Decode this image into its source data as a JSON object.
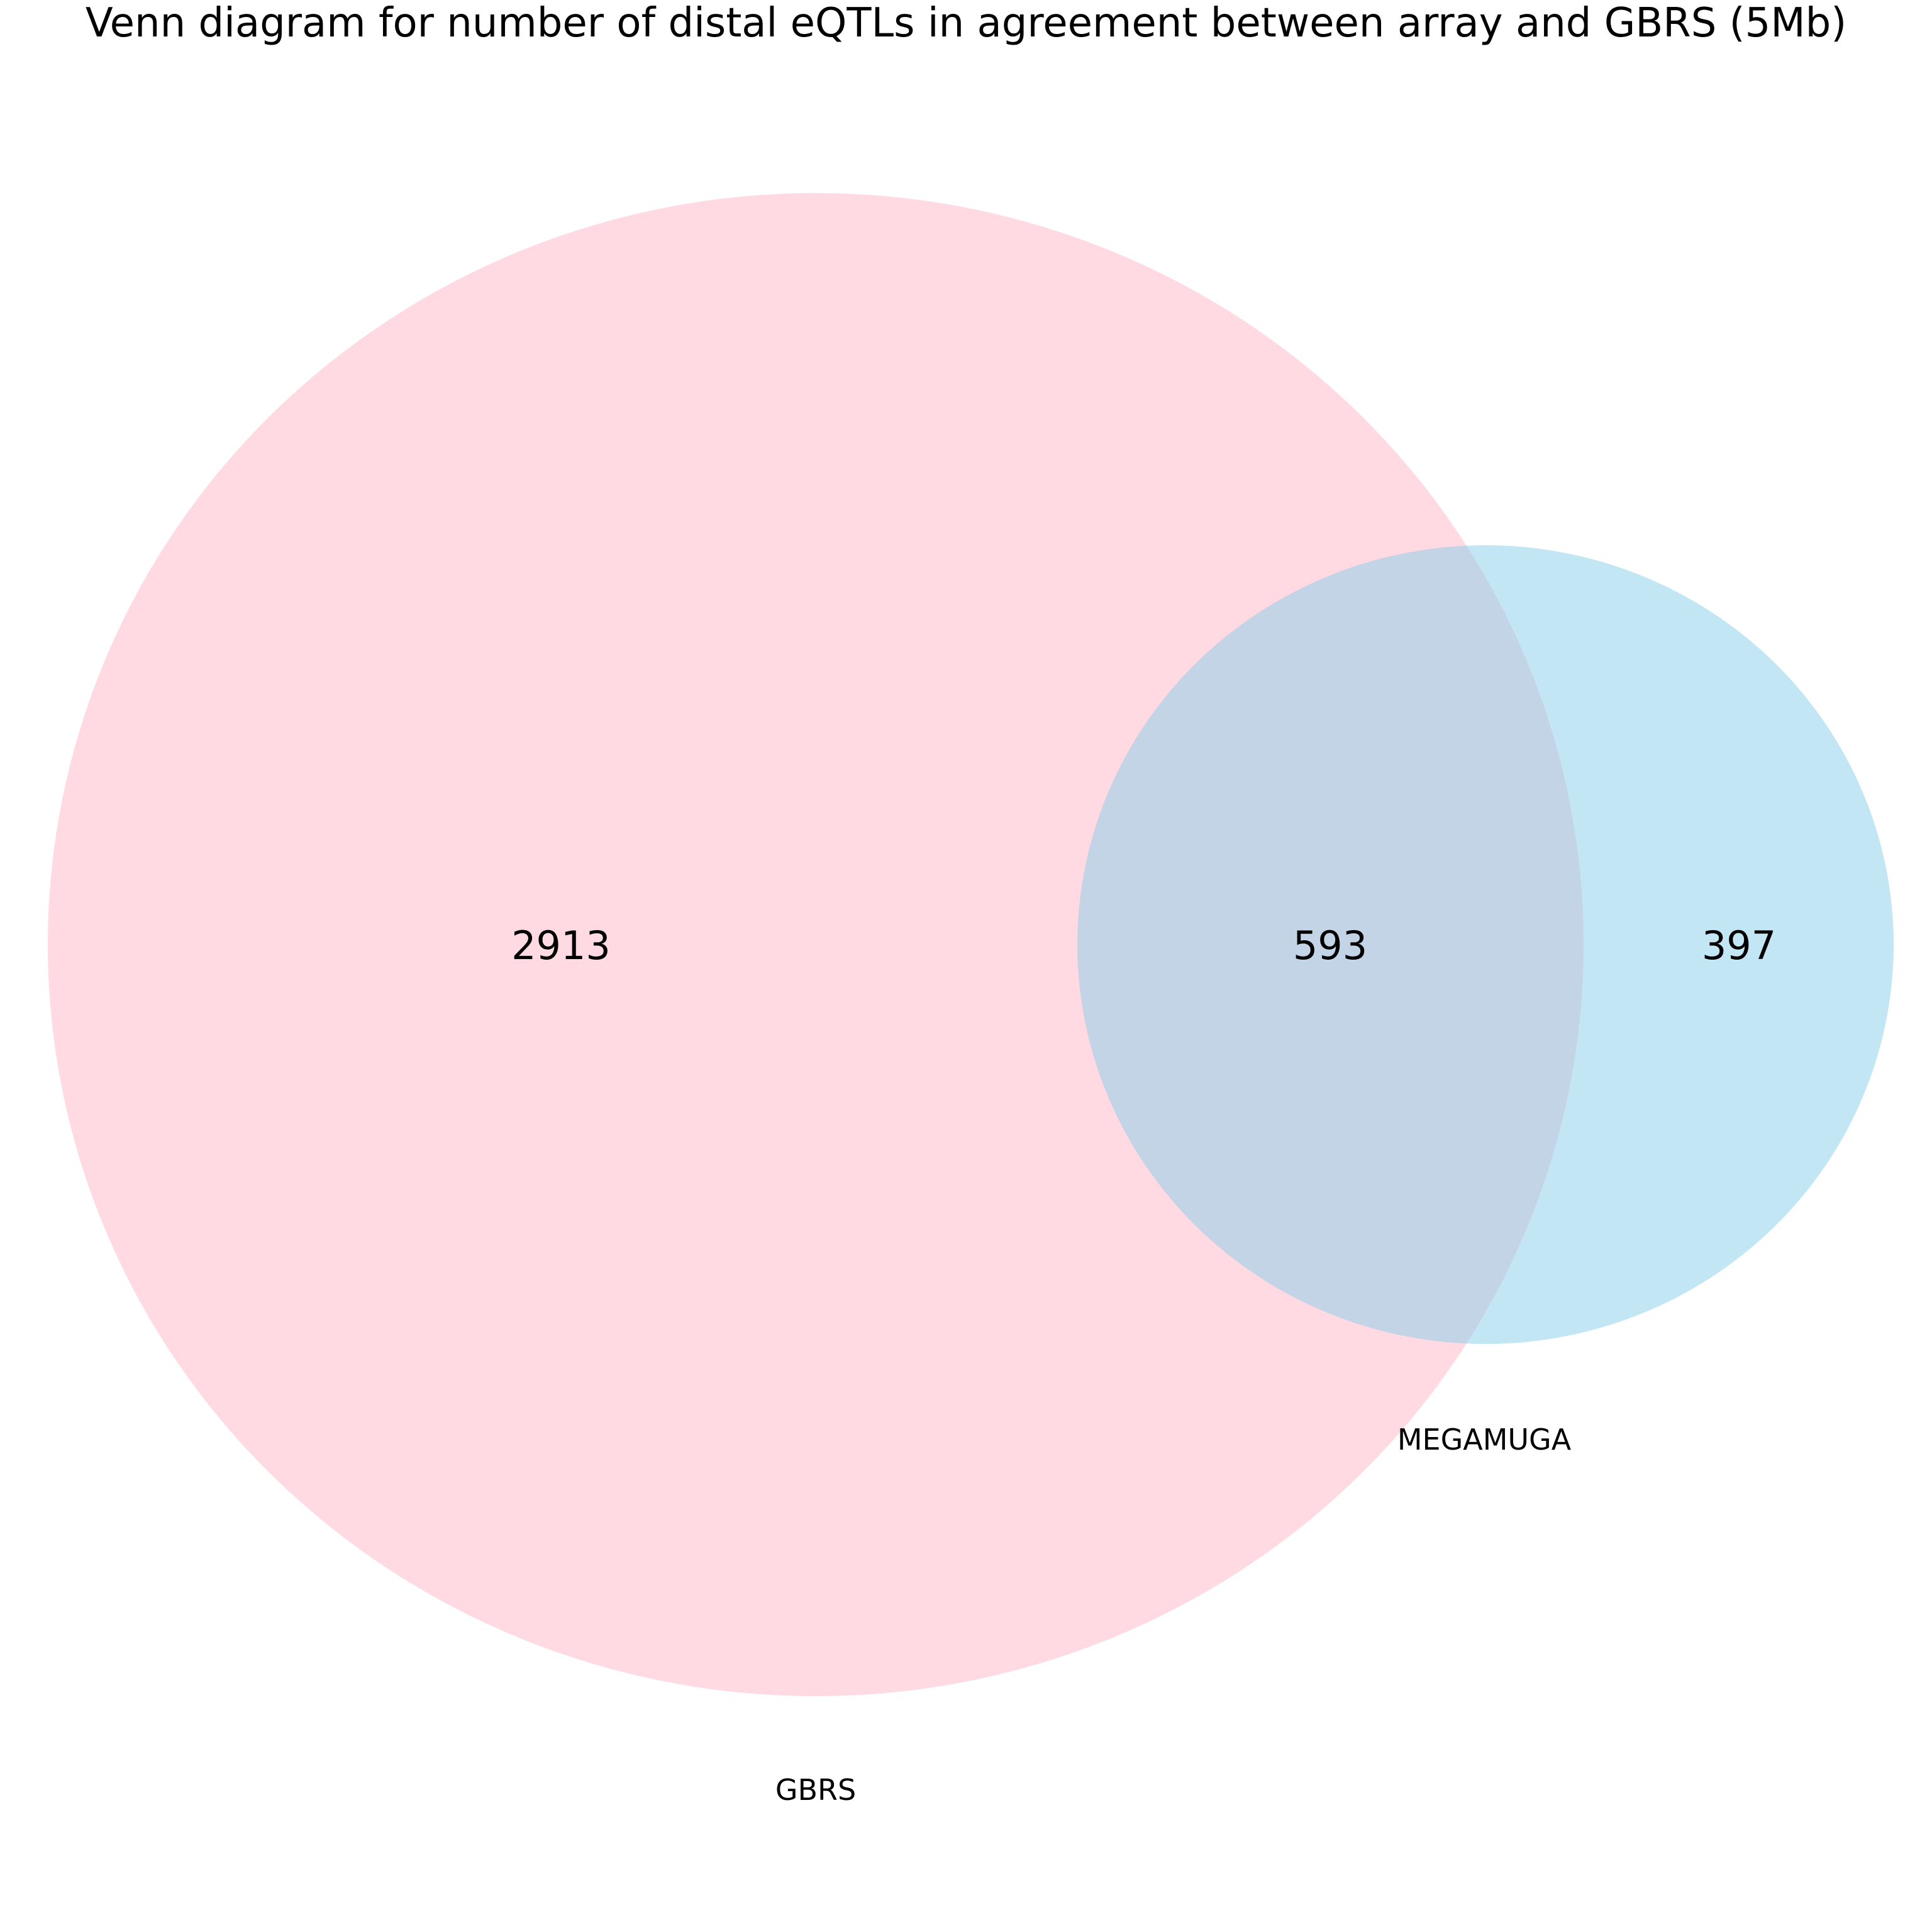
{
  "title": "Venn diagram for number of distal eQTLs in agreement between array and GBRS (5Mb)",
  "sets": [
    {
      "name": "GBRS",
      "color": "#ffb6c8",
      "opacity": 0.5
    },
    {
      "name": "MEGAMUGA",
      "color": "#87ceeb",
      "opacity": 0.5
    }
  ],
  "counts": {
    "gbrs_only": "2913",
    "intersection": "593",
    "megamuga_only": "397"
  }
}
